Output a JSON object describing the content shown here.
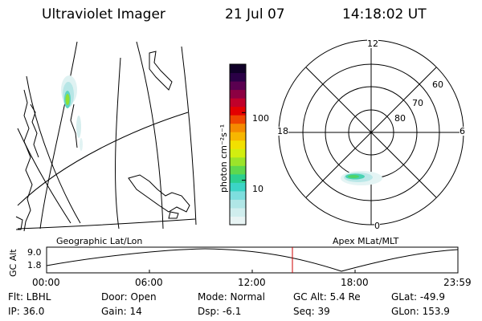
{
  "header": {
    "instrument": "Ultraviolet Imager",
    "date": "21 Jul 07",
    "time": "14:18:02 UT"
  },
  "colorbar": {
    "units_label": "photon cm⁻²s⁻¹",
    "ticks": [
      "100",
      "10"
    ],
    "tick_values": [
      100,
      10
    ],
    "range": [
      2.2,
      520
    ],
    "scale": "log",
    "colors": [
      "#e8f4f4",
      "#d0eeee",
      "#b0e6e6",
      "#7edede",
      "#3cd4c6",
      "#2ccf8e",
      "#5ed84e",
      "#9be42a",
      "#d2ee10",
      "#f2e000",
      "#f7b600",
      "#f58a00",
      "#ef4600",
      "#e30000",
      "#c0002a",
      "#8c0042",
      "#5a0050",
      "#2a0046",
      "#100028"
    ]
  },
  "polar": {
    "mlt_labels": {
      "top": "12",
      "left": "18",
      "right": "6",
      "bottom": "0"
    },
    "mlat_labels": [
      "60",
      "70",
      "80"
    ]
  },
  "panel_labels": {
    "geo": "Geographic Lat/Lon",
    "apex": "Apex MLat/MLT"
  },
  "altitude_plot": {
    "ylabel": "GC Alt",
    "y_ticks": [
      "9.0",
      "1.8"
    ],
    "x_ticks": [
      "00:00",
      "06:00",
      "12:00",
      "18:00",
      "23:59"
    ],
    "marker_color": "#cc0000",
    "marker_time": "14:18"
  },
  "info": {
    "filter": "Flt: LBHL",
    "ip": "IP: 36.0",
    "door": "Door: Open",
    "gain": "Gain: 14",
    "mode": "Mode: Normal",
    "dsp": "Dsp:    -6.1",
    "gc_alt": "GC Alt: 5.4 Re",
    "seq": "Seq: 39",
    "glat": "GLat: -49.9",
    "glon": "GLon: 153.9"
  }
}
